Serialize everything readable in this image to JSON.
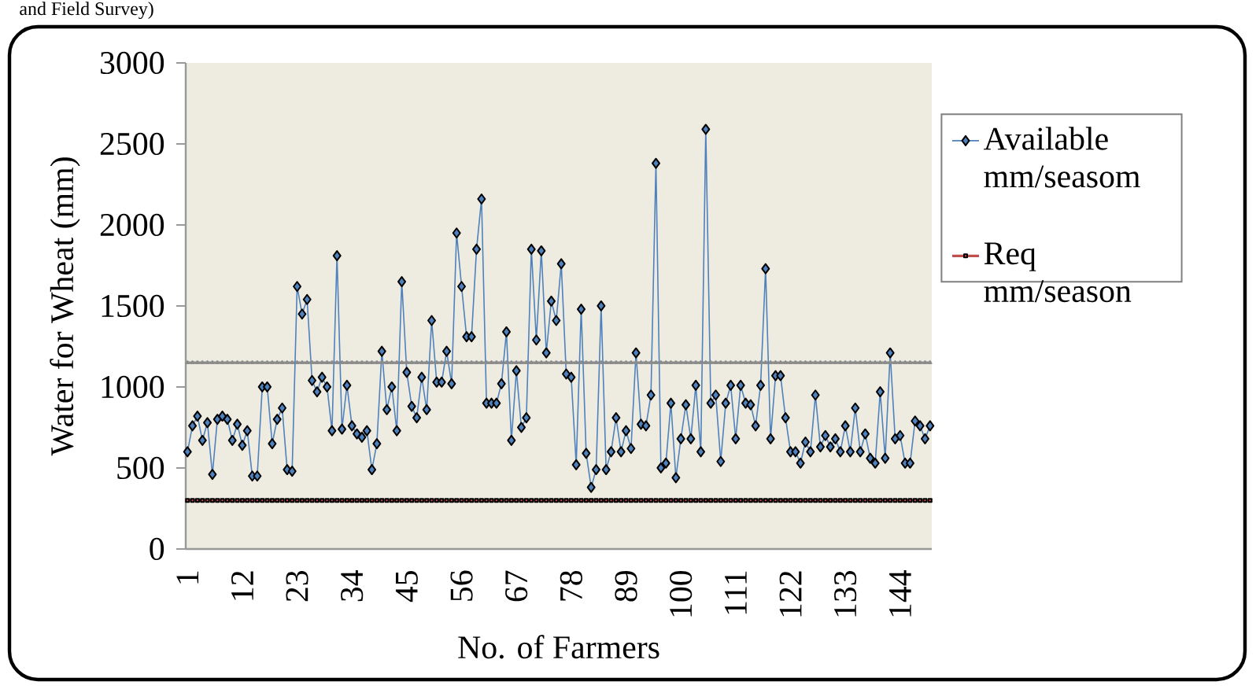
{
  "chart_data": {
    "type": "line",
    "annotations": [
      "and Field Survey)"
    ],
    "xlabel": "No. of Farmers",
    "ylabel": "Water for Wheat (mm)",
    "categories": [
      "1",
      null,
      null,
      null,
      null,
      null,
      null,
      null,
      null,
      null,
      null,
      "12",
      null,
      null,
      null,
      null,
      null,
      null,
      null,
      null,
      null,
      null,
      "23",
      null,
      null,
      null,
      null,
      null,
      null,
      null,
      null,
      null,
      null,
      "34",
      null,
      null,
      null,
      null,
      null,
      null,
      null,
      null,
      null,
      null,
      "45",
      null,
      null,
      null,
      null,
      null,
      null,
      null,
      null,
      null,
      null,
      "56",
      null,
      null,
      null,
      null,
      null,
      null,
      null,
      null,
      null,
      null,
      "67",
      null,
      null,
      null,
      null,
      null,
      null,
      null,
      null,
      null,
      null,
      "78",
      null,
      null,
      null,
      null,
      null,
      null,
      null,
      null,
      null,
      null,
      "89",
      null,
      null,
      null,
      null,
      null,
      null,
      null,
      null,
      null,
      null,
      "100",
      null,
      null,
      null,
      null,
      null,
      null,
      null,
      null,
      null,
      null,
      "111",
      null,
      null,
      null,
      null,
      null,
      null,
      null,
      null,
      null,
      null,
      "122",
      null,
      null,
      null,
      null,
      null,
      null,
      null,
      null,
      null,
      null,
      "133",
      null,
      null,
      null,
      null,
      null,
      null,
      null,
      null,
      null,
      null,
      "144",
      null,
      null,
      null,
      null,
      null,
      null
    ],
    "series": [
      {
        "name": "Available mm/seasom",
        "color": "#4f81bd",
        "marker": "diamond",
        "values": [
          600,
          760,
          820,
          670,
          780,
          460,
          800,
          820,
          800,
          670,
          770,
          640,
          730,
          450,
          450,
          1000,
          1000,
          650,
          800,
          870,
          490,
          480,
          1620,
          1450,
          1540,
          1040,
          970,
          1060,
          1000,
          730,
          1810,
          740,
          1010,
          760,
          710,
          690,
          730,
          490,
          650,
          1220,
          860,
          1000,
          730,
          1650,
          1090,
          880,
          810,
          1060,
          860,
          1410,
          1030,
          1030,
          1220,
          1020,
          1950,
          1620,
          1310,
          1310,
          1850,
          2160,
          900,
          900,
          900,
          1020,
          1340,
          670,
          1100,
          750,
          810,
          1850,
          1290,
          1840,
          1210,
          1530,
          1410,
          1760,
          1080,
          1060,
          520,
          1480,
          590,
          380,
          490,
          1500,
          490,
          600,
          810,
          600,
          730,
          620,
          1210,
          770,
          760,
          950,
          2380,
          500,
          530,
          900,
          440,
          680,
          890,
          680,
          1010,
          600,
          2590,
          900,
          950,
          540,
          900,
          1010,
          680,
          1010,
          900,
          890,
          760,
          1010,
          1730,
          680,
          1070,
          1070,
          810,
          600,
          600,
          530,
          660,
          600,
          950,
          630,
          700,
          630,
          680,
          600,
          760,
          600,
          870,
          600,
          710,
          560,
          530,
          970,
          560,
          1210,
          680,
          700,
          530,
          530,
          790,
          760,
          680,
          760
        ]
      },
      {
        "name": "Req mm/season",
        "color": "#c0504d",
        "marker": "square",
        "values": [
          300,
          300,
          300,
          300,
          300,
          300,
          300,
          300,
          300,
          300,
          300,
          300,
          300,
          300,
          300,
          300,
          300,
          300,
          300,
          300,
          300,
          300,
          300,
          300,
          300,
          300,
          300,
          300,
          300,
          300,
          300,
          300,
          300,
          300,
          300,
          300,
          300,
          300,
          300,
          300,
          300,
          300,
          300,
          300,
          300,
          300,
          300,
          300,
          300,
          300,
          300,
          300,
          300,
          300,
          300,
          300,
          300,
          300,
          300,
          300,
          300,
          300,
          300,
          300,
          300,
          300,
          300,
          300,
          300,
          300,
          300,
          300,
          300,
          300,
          300,
          300,
          300,
          300,
          300,
          300,
          300,
          300,
          300,
          300,
          300,
          300,
          300,
          300,
          300,
          300,
          300,
          300,
          300,
          300,
          300,
          300,
          300,
          300,
          300,
          300,
          300,
          300,
          300,
          300,
          300,
          300,
          300,
          300,
          300,
          300,
          300,
          300,
          300,
          300,
          300,
          300,
          300,
          300,
          300,
          300,
          300,
          300,
          300,
          300,
          300,
          300,
          300,
          300,
          300,
          300,
          300,
          300,
          300,
          300,
          300,
          300,
          300,
          300,
          300,
          300,
          300,
          300,
          300,
          300,
          300,
          300,
          300,
          300,
          300,
          300
        ]
      },
      {
        "color": "#8c8c8c",
        "marker": "triangle",
        "values": [
          1150,
          1150,
          1150,
          1150,
          1150,
          1150,
          1150,
          1150,
          1150,
          1150,
          1150,
          1150,
          1150,
          1150,
          1150,
          1150,
          1150,
          1150,
          1150,
          1150,
          1150,
          1150,
          1150,
          1150,
          1150,
          1150,
          1150,
          1150,
          1150,
          1150,
          1150,
          1150,
          1150,
          1150,
          1150,
          1150,
          1150,
          1150,
          1150,
          1150,
          1150,
          1150,
          1150,
          1150,
          1150,
          1150,
          1150,
          1150,
          1150,
          1150,
          1150,
          1150,
          1150,
          1150,
          1150,
          1150,
          1150,
          1150,
          1150,
          1150,
          1150,
          1150,
          1150,
          1150,
          1150,
          1150,
          1150,
          1150,
          1150,
          1150,
          1150,
          1150,
          1150,
          1150,
          1150,
          1150,
          1150,
          1150,
          1150,
          1150,
          1150,
          1150,
          1150,
          1150,
          1150,
          1150,
          1150,
          1150,
          1150,
          1150,
          1150,
          1150,
          1150,
          1150,
          1150,
          1150,
          1150,
          1150,
          1150,
          1150,
          1150,
          1150,
          1150,
          1150,
          1150,
          1150,
          1150,
          1150,
          1150,
          1150,
          1150,
          1150,
          1150,
          1150,
          1150,
          1150,
          1150,
          1150,
          1150,
          1150,
          1150,
          1150,
          1150,
          1150,
          1150,
          1150,
          1150,
          1150,
          1150,
          1150,
          1150,
          1150,
          1150,
          1150,
          1150,
          1150,
          1150,
          1150,
          1150,
          1150,
          1150,
          1150,
          1150,
          1150,
          1150,
          1150,
          1150,
          1150,
          1150,
          1150
        ]
      }
    ],
    "ylim": [
      0,
      3000
    ],
    "yticks": [
      0,
      500,
      1000,
      1500,
      2000,
      2500,
      3000
    ],
    "grid": false,
    "legend": "right",
    "line_style": "solid"
  }
}
